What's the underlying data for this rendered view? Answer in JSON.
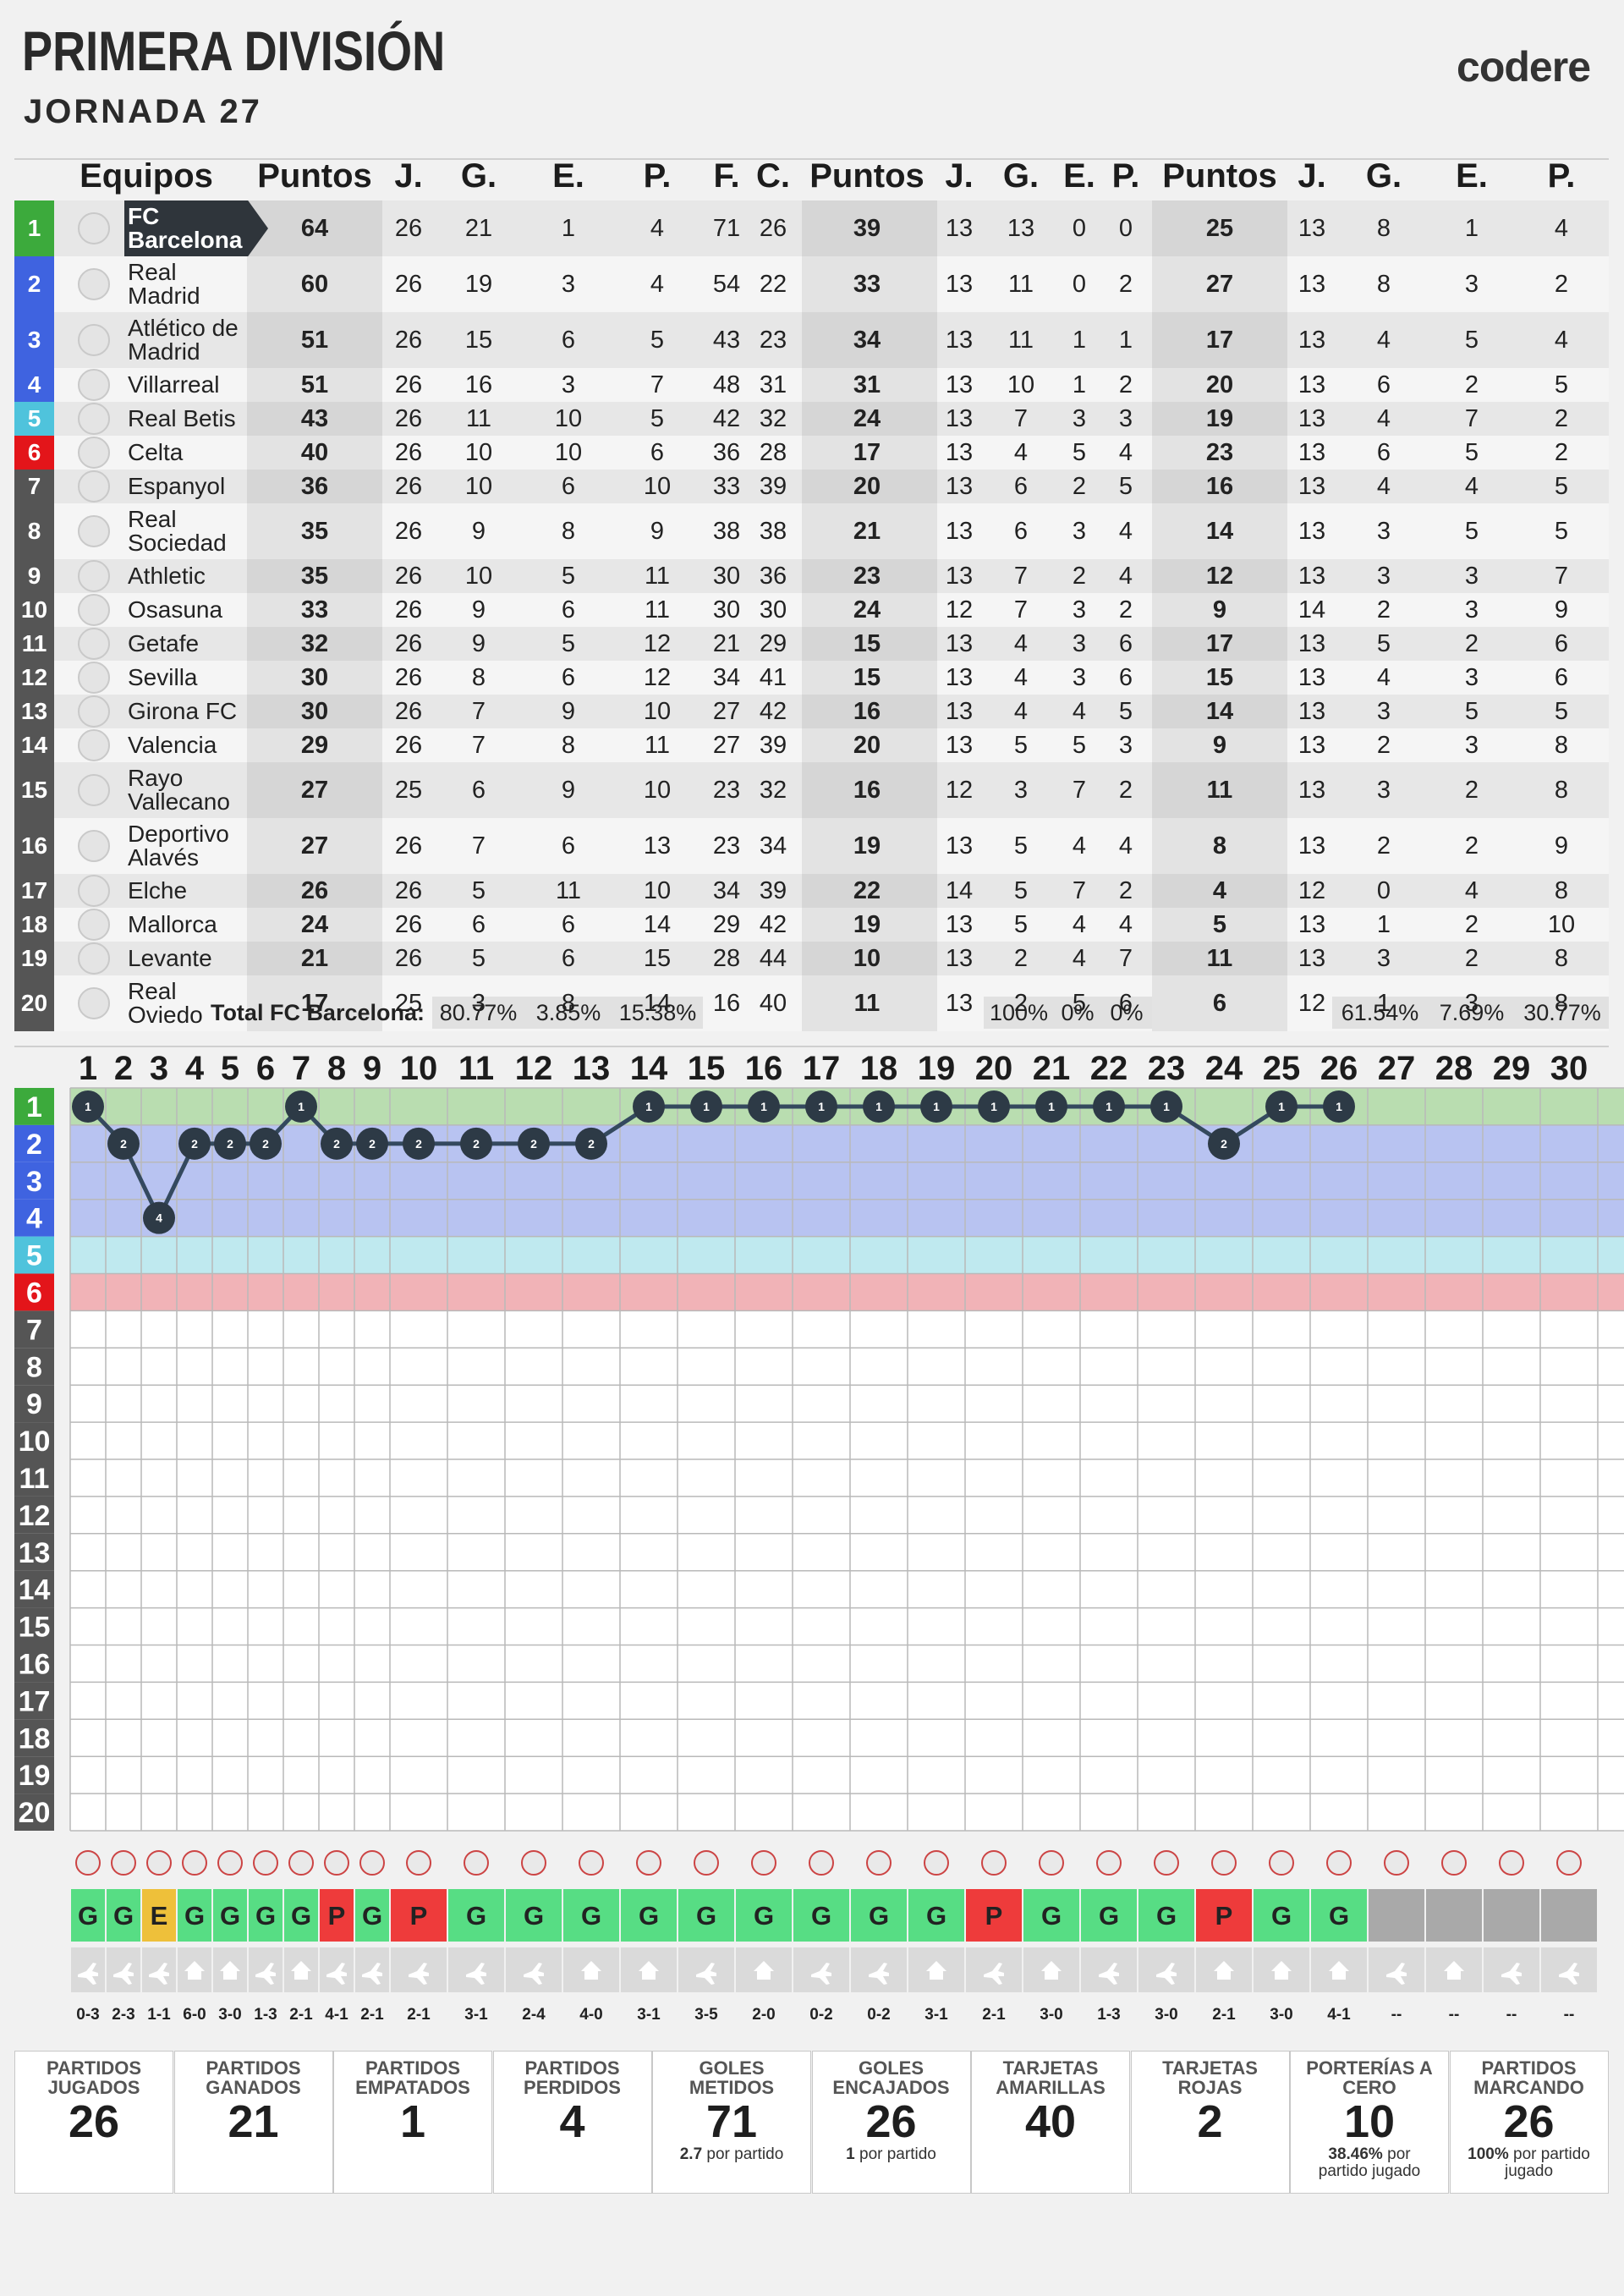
{
  "header": {
    "title": "PRIMERA DIVISIÓN",
    "round_label": "JORNADA",
    "round": 27,
    "brand": "codere"
  },
  "standings": {
    "columns": [
      "Equipos",
      "Puntos",
      "J.",
      "G.",
      "E.",
      "P.",
      "F.",
      "C.",
      "Puntos",
      "J.",
      "G.",
      "E.",
      "P.",
      "Puntos",
      "J.",
      "G.",
      "E.",
      "P."
    ],
    "rows": [
      [
        1,
        "FC Barcelona",
        64,
        26,
        21,
        1,
        4,
        71,
        26,
        39,
        13,
        13,
        0,
        0,
        25,
        13,
        8,
        1,
        4
      ],
      [
        2,
        "Real Madrid",
        60,
        26,
        19,
        3,
        4,
        54,
        22,
        33,
        13,
        11,
        0,
        2,
        27,
        13,
        8,
        3,
        2
      ],
      [
        3,
        "Atlético de Madrid",
        51,
        26,
        15,
        6,
        5,
        43,
        23,
        34,
        13,
        11,
        1,
        1,
        17,
        13,
        4,
        5,
        4
      ],
      [
        4,
        "Villarreal",
        51,
        26,
        16,
        3,
        7,
        48,
        31,
        31,
        13,
        10,
        1,
        2,
        20,
        13,
        6,
        2,
        5
      ],
      [
        5,
        "Real Betis",
        43,
        26,
        11,
        10,
        5,
        42,
        32,
        24,
        13,
        7,
        3,
        3,
        19,
        13,
        4,
        7,
        2
      ],
      [
        6,
        "Celta",
        40,
        26,
        10,
        10,
        6,
        36,
        28,
        17,
        13,
        4,
        5,
        4,
        23,
        13,
        6,
        5,
        2
      ],
      [
        7,
        "Espanyol",
        36,
        26,
        10,
        6,
        10,
        33,
        39,
        20,
        13,
        6,
        2,
        5,
        16,
        13,
        4,
        4,
        5
      ],
      [
        8,
        "Real Sociedad",
        35,
        26,
        9,
        8,
        9,
        38,
        38,
        21,
        13,
        6,
        3,
        4,
        14,
        13,
        3,
        5,
        5
      ],
      [
        9,
        "Athletic",
        35,
        26,
        10,
        5,
        11,
        30,
        36,
        23,
        13,
        7,
        2,
        4,
        12,
        13,
        3,
        3,
        7
      ],
      [
        10,
        "Osasuna",
        33,
        26,
        9,
        6,
        11,
        30,
        30,
        24,
        12,
        7,
        3,
        2,
        9,
        14,
        2,
        3,
        9
      ],
      [
        11,
        "Getafe",
        32,
        26,
        9,
        5,
        12,
        21,
        29,
        15,
        13,
        4,
        3,
        6,
        17,
        13,
        5,
        2,
        6
      ],
      [
        12,
        "Sevilla",
        30,
        26,
        8,
        6,
        12,
        34,
        41,
        15,
        13,
        4,
        3,
        6,
        15,
        13,
        4,
        3,
        6
      ],
      [
        13,
        "Girona FC",
        30,
        26,
        7,
        9,
        10,
        27,
        42,
        16,
        13,
        4,
        4,
        5,
        14,
        13,
        3,
        5,
        5
      ],
      [
        14,
        "Valencia",
        29,
        26,
        7,
        8,
        11,
        27,
        39,
        20,
        13,
        5,
        5,
        3,
        9,
        13,
        2,
        3,
        8
      ],
      [
        15,
        "Rayo Vallecano",
        27,
        25,
        6,
        9,
        10,
        23,
        32,
        16,
        12,
        3,
        7,
        2,
        11,
        13,
        3,
        2,
        8
      ],
      [
        16,
        "Deportivo Alavés",
        27,
        26,
        7,
        6,
        13,
        23,
        34,
        19,
        13,
        5,
        4,
        4,
        8,
        13,
        2,
        2,
        9
      ],
      [
        17,
        "Elche",
        26,
        26,
        5,
        11,
        10,
        34,
        39,
        22,
        14,
        5,
        7,
        2,
        4,
        12,
        0,
        4,
        8
      ],
      [
        18,
        "Mallorca",
        24,
        26,
        6,
        6,
        14,
        29,
        42,
        19,
        13,
        5,
        4,
        4,
        5,
        13,
        1,
        2,
        10
      ],
      [
        19,
        "Levante",
        21,
        26,
        5,
        6,
        15,
        28,
        44,
        10,
        13,
        2,
        4,
        7,
        11,
        13,
        3,
        2,
        8
      ],
      [
        20,
        "Real Oviedo",
        17,
        25,
        3,
        8,
        14,
        16,
        40,
        11,
        13,
        2,
        5,
        6,
        6,
        12,
        1,
        3,
        8
      ]
    ],
    "totals_label": "Total FC Barcelona:",
    "totals": [
      "80.77%",
      "3.85%",
      "15.38%",
      "100%",
      "0%",
      "0%",
      "61.54%",
      "7.69%",
      "30.77%"
    ]
  },
  "positions": {
    "jornadas": [
      1,
      2,
      3,
      4,
      5,
      6,
      7,
      8,
      9,
      10,
      11,
      12,
      13,
      14,
      15,
      16,
      17,
      18,
      19,
      20,
      21,
      22,
      23,
      24,
      25,
      26,
      27,
      28,
      29,
      30
    ],
    "row_labels": [
      1,
      2,
      3,
      4,
      5,
      6,
      7,
      8,
      9,
      10,
      11,
      12,
      13,
      14,
      15,
      16,
      17,
      18,
      19,
      20
    ],
    "values": [
      1,
      2,
      4,
      2,
      2,
      2,
      1,
      2,
      2,
      2,
      2,
      2,
      2,
      1,
      1,
      1,
      1,
      1,
      1,
      1,
      1,
      1,
      1,
      2,
      1,
      1
    ]
  },
  "results": {
    "outcomes": [
      "G",
      "G",
      "E",
      "G",
      "G",
      "G",
      "G",
      "P",
      "G",
      "P",
      "G",
      "G",
      "G",
      "G",
      "G",
      "G",
      "G",
      "G",
      "G",
      "P",
      "G",
      "G",
      "G",
      "P",
      "G",
      "G",
      null,
      null,
      null,
      null
    ],
    "home": [
      false,
      false,
      false,
      true,
      true,
      false,
      true,
      false,
      false,
      false,
      false,
      false,
      true,
      true,
      false,
      true,
      false,
      false,
      true,
      false,
      true,
      false,
      false,
      true,
      true,
      true,
      false,
      true,
      false,
      false
    ],
    "scores": [
      "0-3",
      "2-3",
      "1-1",
      "6-0",
      "3-0",
      "1-3",
      "2-1",
      "4-1",
      "2-1",
      "2-1",
      "3-1",
      "2-4",
      "4-0",
      "3-1",
      "3-5",
      "2-0",
      "0-2",
      "0-2",
      "3-1",
      "2-1",
      "3-0",
      "1-3",
      "3-0",
      "2-1",
      "3-0",
      "4-1",
      "--",
      "--",
      "--",
      "--"
    ]
  },
  "stats": [
    {
      "title": "PARTIDOS JUGADOS",
      "value": 26
    },
    {
      "title": "PARTIDOS GANADOS",
      "value": 21
    },
    {
      "title": "PARTIDOS EMPATADOS",
      "value": 1
    },
    {
      "title": "PARTIDOS PERDIDOS",
      "value": 4
    },
    {
      "title": "GOLES METIDOS",
      "value": 71,
      "note_strong": "2.7",
      "note": "por partido"
    },
    {
      "title": "GOLES ENCAJADOS",
      "value": 26,
      "note_strong": "1",
      "note": "por partido"
    },
    {
      "title": "TARJETAS AMARILLAS",
      "value": 40
    },
    {
      "title": "TARJETAS ROJAS",
      "value": 2
    },
    {
      "title": "PORTERÍAS A CERO",
      "value": 10,
      "note_strong": "38.46%",
      "note": "por partido jugado"
    },
    {
      "title": "PARTIDOS MARCANDO",
      "value": 26,
      "note_strong": "100%",
      "note": "por partido jugado"
    }
  ]
}
